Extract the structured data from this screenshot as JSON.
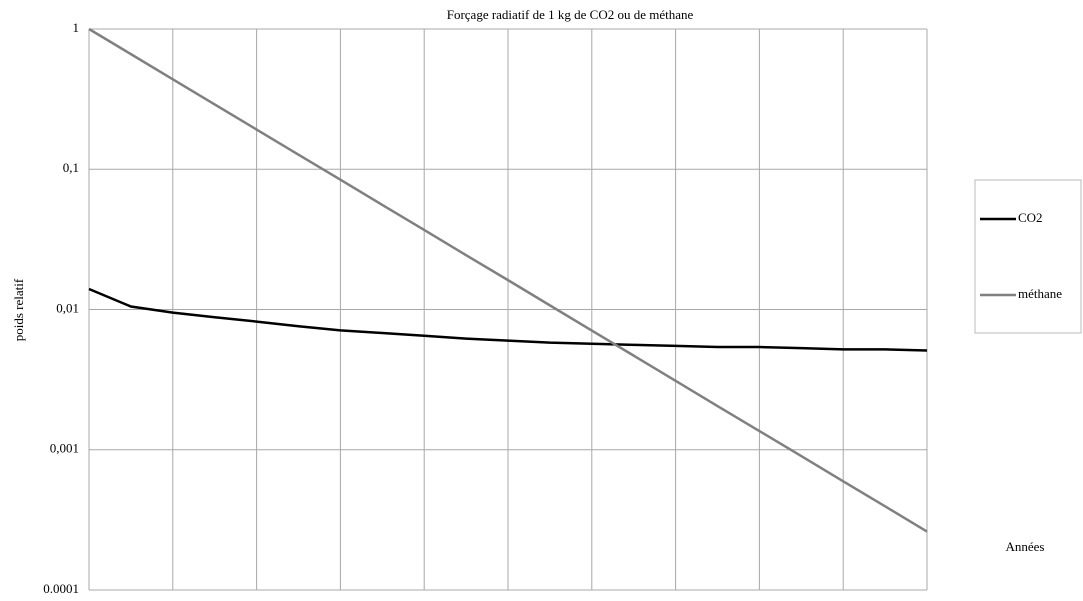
{
  "chart_data": {
    "type": "line",
    "title": "Forçage radiatif de 1 kg de CO2 ou de méthane",
    "xlabel": "Années",
    "ylabel": "poids relatif",
    "categories": [
      null,
      null,
      null,
      null,
      null,
      null,
      null,
      null,
      null,
      null,
      null,
      null,
      null,
      null,
      null,
      null,
      null,
      null,
      null,
      null,
      null
    ],
    "series": [
      {
        "name": "CO2",
        "color": "#000000",
        "values": [
          0.014,
          0.0105,
          0.0095,
          0.0088,
          0.0082,
          0.0076,
          0.0071,
          0.0068,
          0.0065,
          0.0062,
          0.006,
          0.0058,
          0.0057,
          0.0056,
          0.0055,
          0.0054,
          0.0054,
          0.0053,
          0.0052,
          0.0052,
          0.0051
        ]
      },
      {
        "name": "méthane",
        "color": "#808080",
        "values": [
          1,
          0.662,
          0.438,
          0.29,
          0.192,
          0.127,
          0.0842,
          0.0557,
          0.0369,
          0.0244,
          0.0162,
          0.0107,
          0.00708,
          0.00469,
          0.0031,
          0.00205,
          0.00136,
          0.000901,
          0.000596,
          0.000395,
          0.000261
        ]
      }
    ],
    "ylim": [
      0.0001,
      1
    ],
    "log_y": true,
    "yticks": [
      {
        "value": 0.0001,
        "label": "0.0001"
      },
      {
        "value": 0.001,
        "label": "0,001"
      },
      {
        "value": 0.01,
        "label": "0,01"
      },
      {
        "value": 0.1,
        "label": "0,1"
      },
      1
    ],
    "grid": true,
    "legend": "right"
  }
}
